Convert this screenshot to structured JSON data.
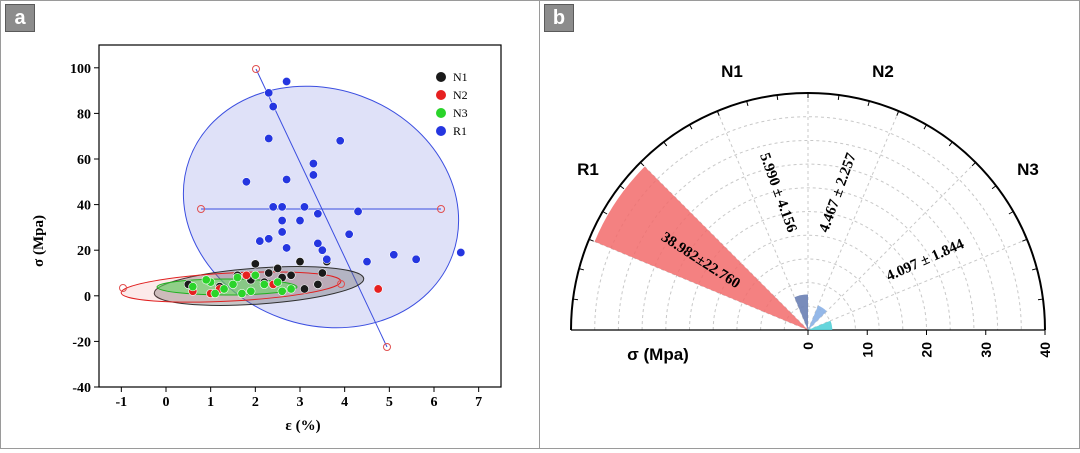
{
  "panels": {
    "a": {
      "tag": "a"
    },
    "b": {
      "tag": "b"
    }
  },
  "chart_data": [
    {
      "type": "scatter",
      "title": "",
      "xlabel": "ε (%)",
      "ylabel": "σ (Mpa)",
      "xlim": [
        -1.5,
        7.5
      ],
      "ylim": [
        -40,
        110
      ],
      "xticks": [
        -1,
        0,
        1,
        2,
        3,
        4,
        5,
        6,
        7
      ],
      "yticks": [
        -40,
        -20,
        0,
        20,
        40,
        60,
        80,
        100
      ],
      "grid": false,
      "legend": "top-right",
      "series": [
        {
          "name": "N1",
          "color": "#1a1a1a",
          "x": [
            2.0,
            2.3,
            2.5,
            2.8,
            3.0,
            3.4,
            3.5,
            3.1,
            2.6,
            2.2,
            1.6,
            1.2,
            0.5,
            1.9,
            3.6
          ],
          "y": [
            14,
            10,
            12,
            9,
            15,
            5,
            10,
            3,
            8,
            6,
            9,
            4,
            5,
            7,
            15
          ]
        },
        {
          "name": "N2",
          "color": "#e62020",
          "x": [
            4.75,
            1.0,
            1.2,
            1.8,
            2.4,
            0.6
          ],
          "y": [
            3,
            1,
            3,
            9,
            5,
            2
          ]
        },
        {
          "name": "N3",
          "color": "#2ad42a",
          "x": [
            0.6,
            1.0,
            1.3,
            1.6,
            1.9,
            2.2,
            2.5,
            2.8,
            1.1,
            1.5,
            0.9,
            1.7,
            2.0,
            2.6
          ],
          "y": [
            4,
            6,
            3,
            8,
            2,
            5,
            6,
            3,
            1,
            5,
            7,
            1,
            9,
            2
          ]
        },
        {
          "name": "R1",
          "color": "#2536e0",
          "x": [
            2.3,
            2.4,
            2.7,
            2.3,
            3.9,
            1.8,
            2.7,
            3.3,
            3.3,
            3.1,
            2.4,
            2.6,
            3.4,
            4.3,
            2.6,
            3.0,
            2.6,
            4.1,
            2.1,
            2.3,
            3.4,
            3.5,
            2.7,
            3.6,
            4.5,
            5.1,
            5.6,
            6.6
          ],
          "y": [
            89,
            83,
            94,
            69,
            68,
            50,
            51,
            53,
            58,
            39,
            39,
            39,
            36,
            37,
            33,
            33,
            28,
            27,
            24,
            25,
            23,
            20,
            21,
            16,
            15,
            18,
            16,
            19
          ]
        }
      ]
    },
    {
      "type": "bar",
      "subtype": "polar",
      "title": "",
      "xlabel": "σ (Mpa)",
      "rlim": [
        0,
        40
      ],
      "rticks": [
        0,
        10,
        20,
        30,
        40
      ],
      "categories": [
        "R1",
        "N1",
        "N2",
        "N3"
      ],
      "values": [
        38.982,
        5.99,
        4.467,
        4.097
      ],
      "errors": [
        22.76,
        4.156,
        2.257,
        1.844
      ],
      "value_labels": [
        "38.982±22.760",
        "5.990 ± 4.156",
        "4.467 ± 2.257",
        "4.097 ± 1.844"
      ],
      "colors": [
        "#f26b6b",
        "#6a7fb4",
        "#8ab0e6",
        "#55d0d8"
      ]
    }
  ]
}
